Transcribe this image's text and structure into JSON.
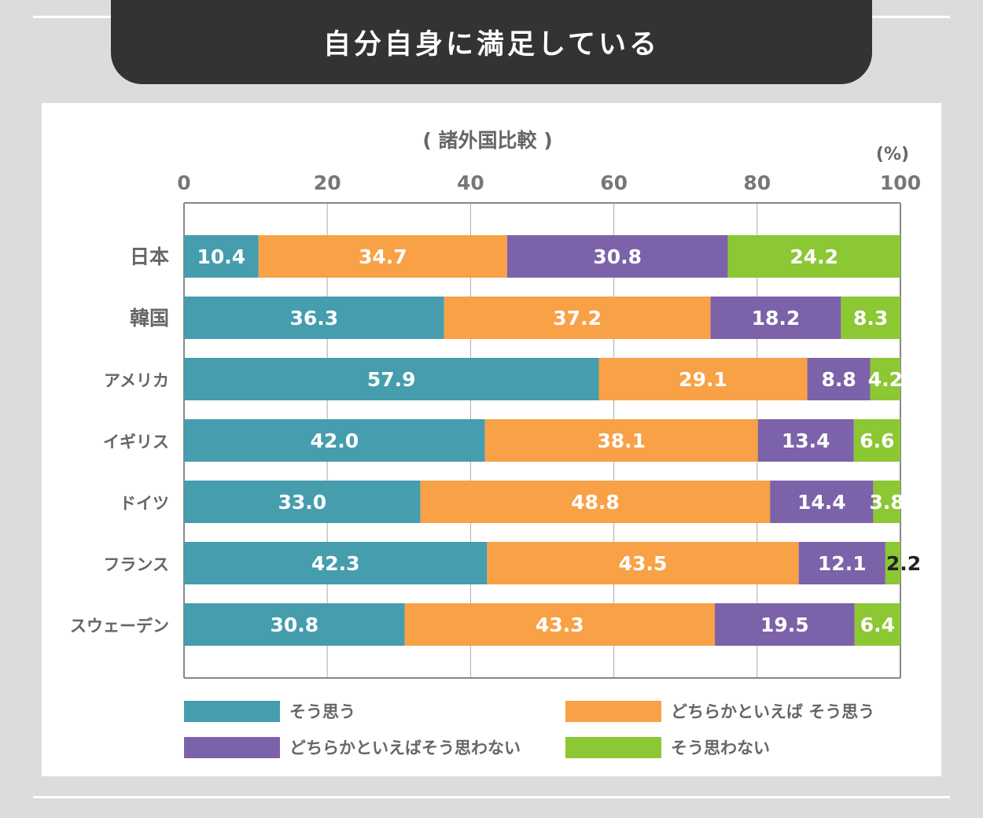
{
  "title": "自分自身に満足している",
  "subtitle": "( 諸外国比較 )",
  "unit": "(%)",
  "colors": {
    "agree": "#459dae",
    "somewhat_agree": "#f8a146",
    "somewhat_disagree": "#7b62a9",
    "disagree": "#8cc734",
    "axis": "#888888",
    "label": "#666666"
  },
  "chart_data": {
    "type": "bar",
    "orientation": "horizontal",
    "stacked": true,
    "title": "自分自身に満足している",
    "subtitle": "( 諸外国比較 )",
    "unit": "(%)",
    "xlim": [
      0,
      100
    ],
    "x_ticks": [
      0,
      20,
      40,
      60,
      80,
      100
    ],
    "grid": true,
    "legend_position": "bottom",
    "categories": [
      "日本",
      "韓国",
      "アメリカ",
      "イギリス",
      "ドイツ",
      "フランス",
      "スウェーデン"
    ],
    "series": [
      {
        "name": "そう思う",
        "color": "#459dae",
        "values": [
          10.4,
          36.3,
          57.9,
          42.0,
          33.0,
          42.3,
          30.8
        ],
        "labels": [
          "10.4",
          "36.3",
          "57.9",
          "42.0",
          "33.0",
          "42.3",
          "30.8"
        ]
      },
      {
        "name": "どちらかといえば そう思う",
        "color": "#f8a146",
        "values": [
          34.7,
          37.2,
          29.1,
          38.1,
          48.8,
          43.5,
          43.3
        ],
        "labels": [
          "34.7",
          "37.2",
          "29.1",
          "38.1",
          "48.8",
          "43.5",
          "43.3"
        ]
      },
      {
        "name": "どちらかといえばそう思わない",
        "color": "#7b62a9",
        "values": [
          30.8,
          18.2,
          8.8,
          13.4,
          14.4,
          12.1,
          19.5
        ],
        "labels": [
          "30.8",
          "18.2",
          "8.8",
          "13.4",
          "14.4",
          "12.1",
          "19.5"
        ]
      },
      {
        "name": "そう思わない",
        "color": "#8cc734",
        "values": [
          24.2,
          8.3,
          4.2,
          6.6,
          3.8,
          2.2,
          6.4
        ],
        "labels": [
          "24.2",
          "8.3",
          "4.2",
          "6.6",
          "3.8",
          "2.2",
          "6.4"
        ]
      }
    ]
  }
}
